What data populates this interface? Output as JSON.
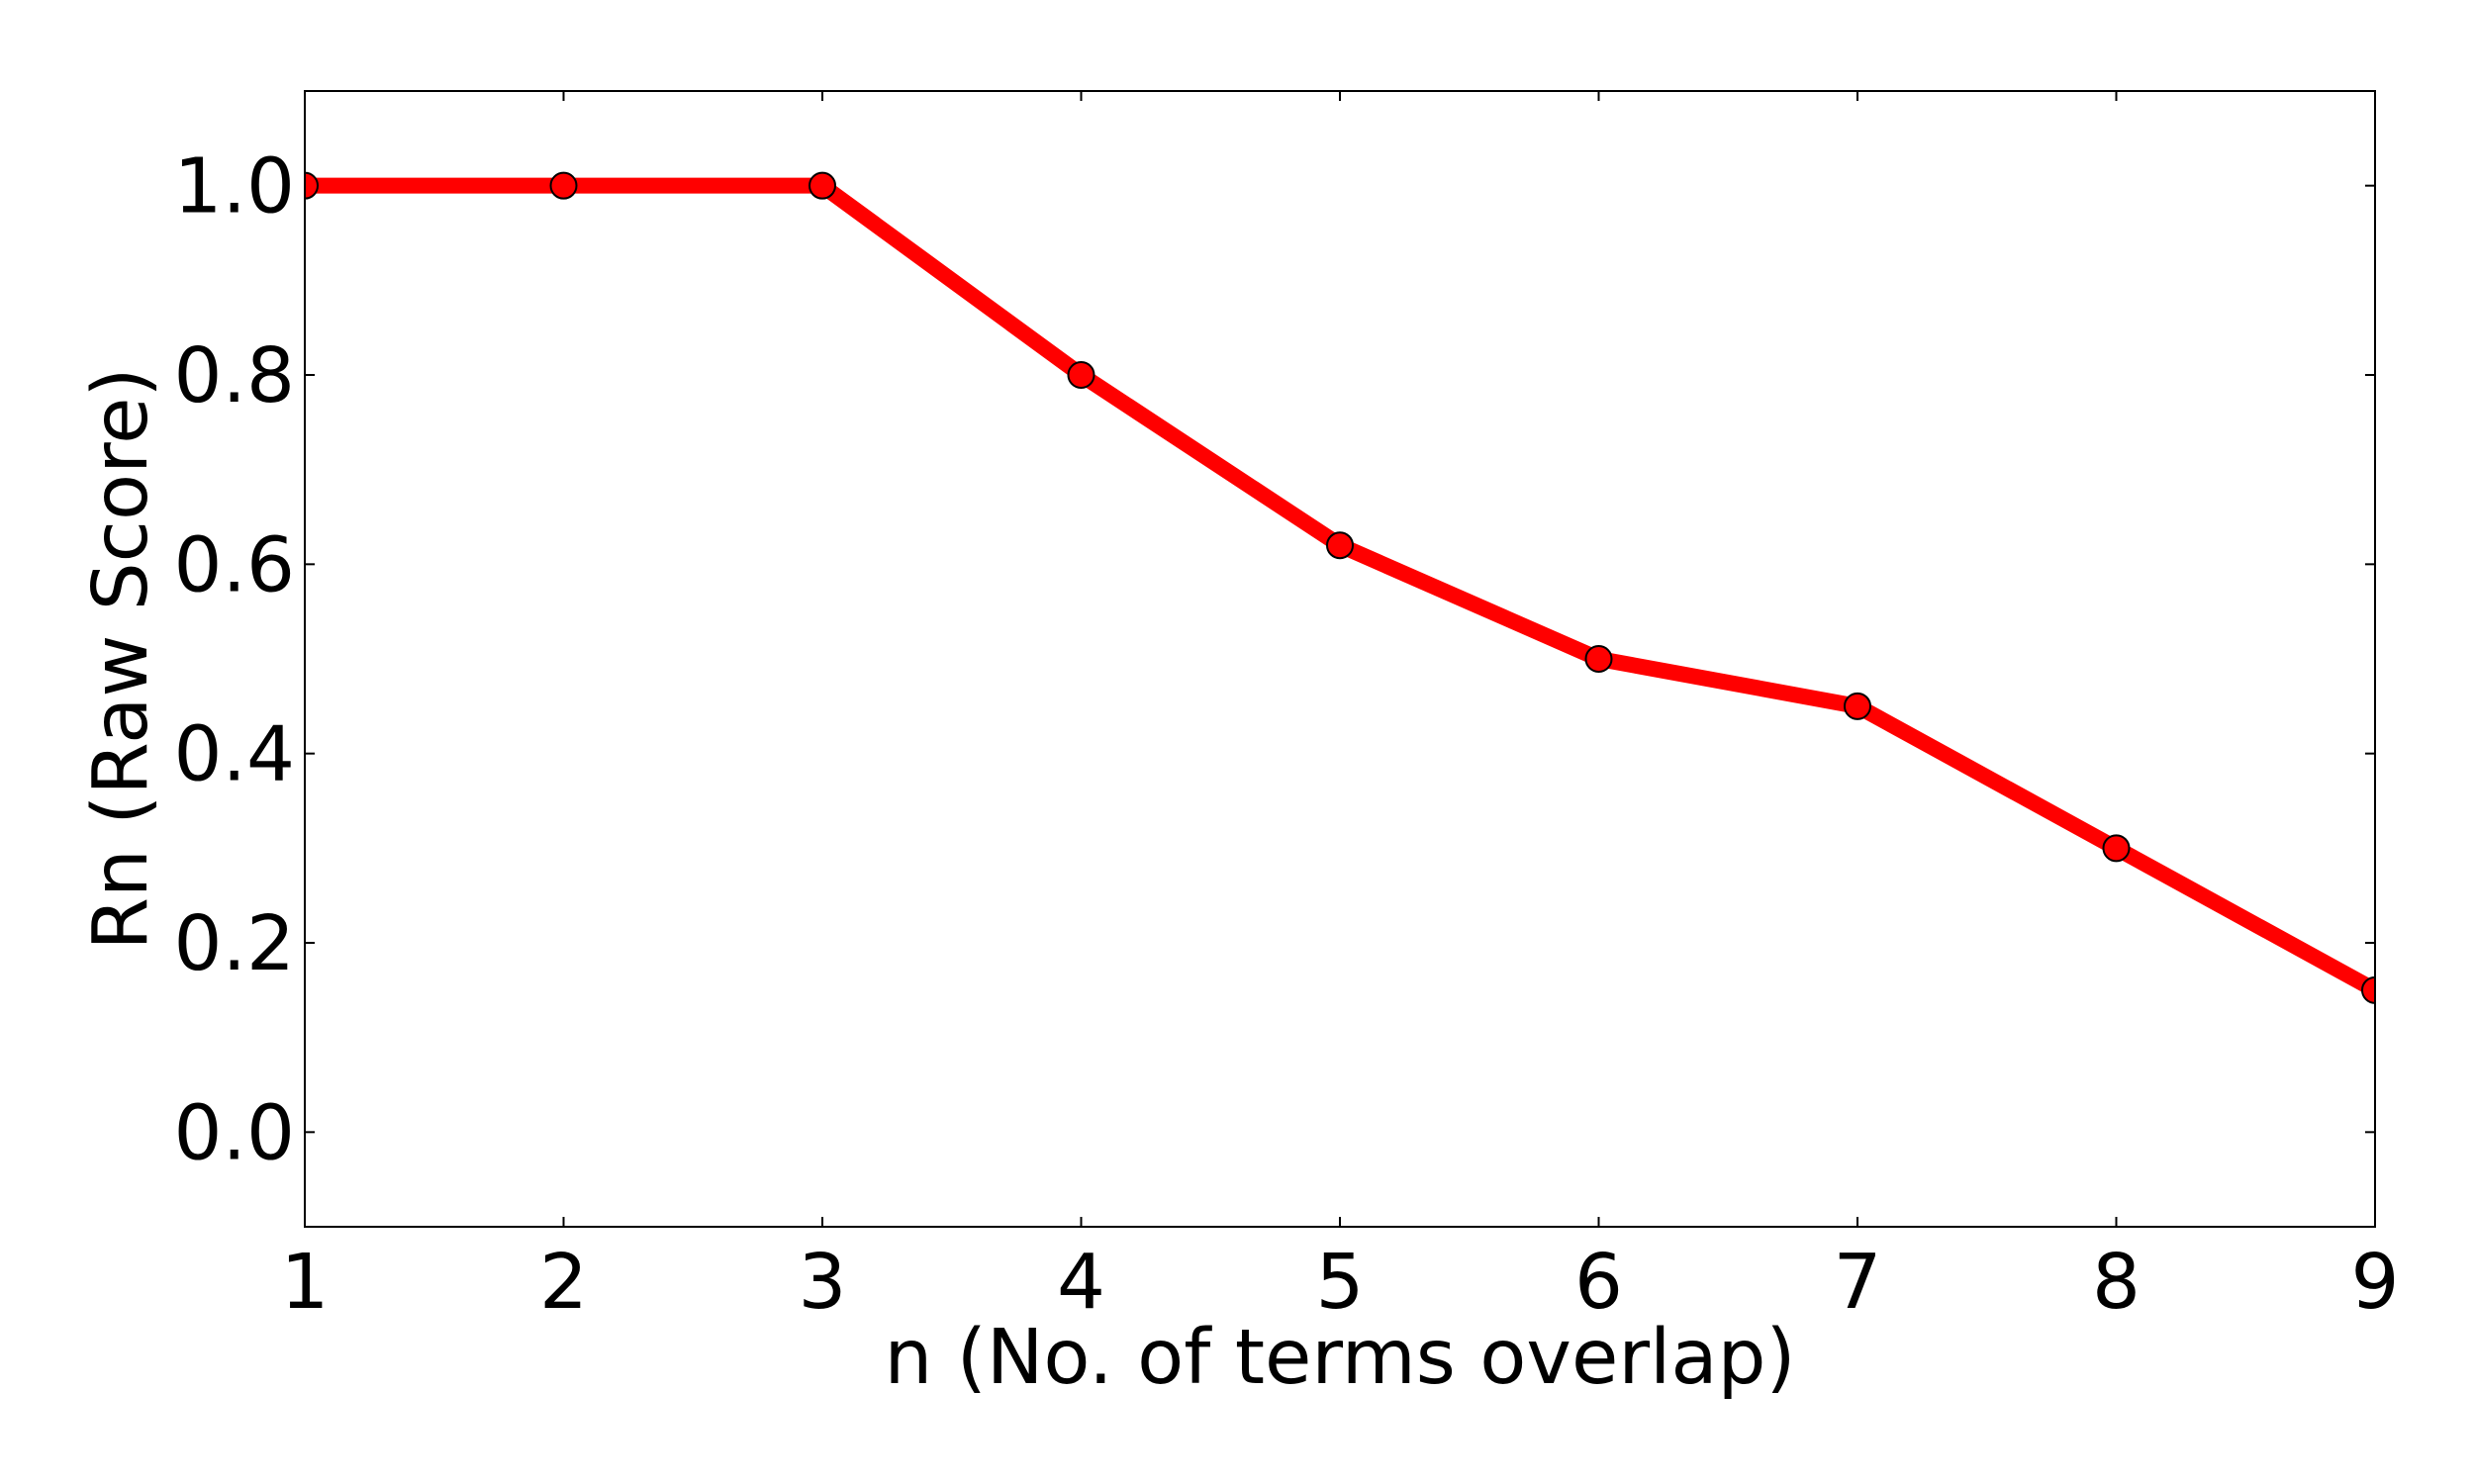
{
  "chart_data": {
    "type": "line",
    "title": "",
    "xlabel": "n (No. of terms overlap)",
    "ylabel": "Rn (Raw Score)",
    "xlim": [
      1,
      9
    ],
    "ylim": [
      -0.1,
      1.1
    ],
    "x_ticks": [
      "1",
      "2",
      "3",
      "4",
      "5",
      "6",
      "7",
      "8",
      "9"
    ],
    "y_ticks": [
      "0.0",
      "0.2",
      "0.4",
      "0.6",
      "0.8",
      "1.0"
    ],
    "grid": false,
    "legend": "none",
    "series": [
      {
        "x": [
          1,
          2,
          3,
          4,
          5,
          6,
          7,
          8,
          9
        ],
        "values": [
          1.0,
          1.0,
          1.0,
          0.8,
          0.62,
          0.5,
          0.45,
          0.3,
          0.15
        ],
        "color": "#ff0000",
        "marker": "circle"
      }
    ]
  }
}
